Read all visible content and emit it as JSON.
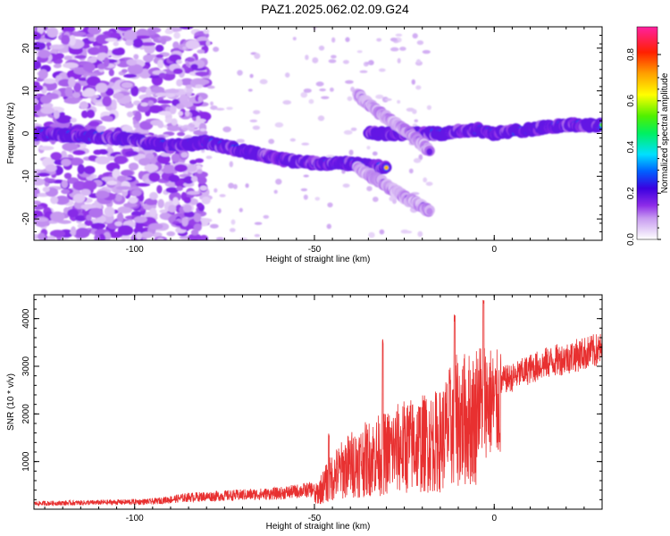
{
  "title": "PAZ1.2025.062.02.09.G24",
  "chart_data": [
    {
      "type": "heatmap",
      "xlabel": "Height of straight line (km)",
      "ylabel": "Frequency (Hz)",
      "xlim": [
        -128,
        30
      ],
      "ylim": [
        -25,
        25
      ],
      "xticks": [
        -100,
        -50,
        0
      ],
      "yticks": [
        -20,
        -10,
        0,
        10,
        20
      ],
      "colorbar": {
        "label": "Normalized spectral amplitude",
        "range": [
          0,
          0.92
        ],
        "ticks": [
          "0.0",
          "0.2",
          "0.4",
          "0.6",
          "0.8"
        ],
        "colormap": "rainbow (white-violet-purple-blue-cyan-green-yellow-orange-red-magenta)"
      },
      "ridges": [
        {
          "x": [
            -128,
            -105,
            -90,
            -80,
            -70,
            -60,
            -50,
            -40,
            -30
          ],
          "y": [
            0,
            -1,
            -3,
            -2,
            -4,
            -6,
            -7,
            -7,
            -8
          ]
        },
        {
          "x": [
            -35,
            -25,
            -15,
            -5,
            0,
            10,
            20,
            30
          ],
          "y": [
            0,
            0,
            0,
            1,
            0,
            1,
            2,
            2
          ]
        },
        {
          "x": [
            -38,
            -32,
            -25,
            -18
          ],
          "y": [
            9,
            5,
            1,
            -4
          ]
        },
        {
          "x": [
            -38,
            -32,
            -25,
            -18
          ],
          "y": [
            -8,
            -11,
            -15,
            -18
          ]
        }
      ]
    },
    {
      "type": "line",
      "xlabel": "Height of straight line (km)",
      "ylabel": "SNR (10 * v/v)",
      "xlim": [
        -128,
        30
      ],
      "ylim": [
        0,
        4500
      ],
      "xticks": [
        -100,
        -50,
        0
      ],
      "yticks": [
        1000,
        2000,
        3000,
        4000
      ],
      "color": "#e83030",
      "envelope": {
        "x": [
          -128,
          -110,
          -95,
          -85,
          -70,
          -60,
          -50,
          -48,
          -45,
          -40,
          -35,
          -30,
          -25,
          -20,
          -15,
          -12,
          -10,
          -5,
          -3,
          -1,
          0,
          5,
          10,
          15,
          20,
          25,
          30
        ],
        "y": [
          120,
          140,
          160,
          250,
          300,
          330,
          420,
          700,
          1100,
          1500,
          1700,
          1900,
          2100,
          2200,
          2300,
          2800,
          3000,
          3050,
          3100,
          3000,
          2900,
          3000,
          3200,
          3350,
          3450,
          3550,
          3650
        ]
      },
      "peaks": [
        {
          "x": -46,
          "y": 1600
        },
        {
          "x": -31,
          "y": 3600
        },
        {
          "x": -11,
          "y": 4100
        },
        {
          "x": -3,
          "y": 4420
        }
      ]
    }
  ]
}
